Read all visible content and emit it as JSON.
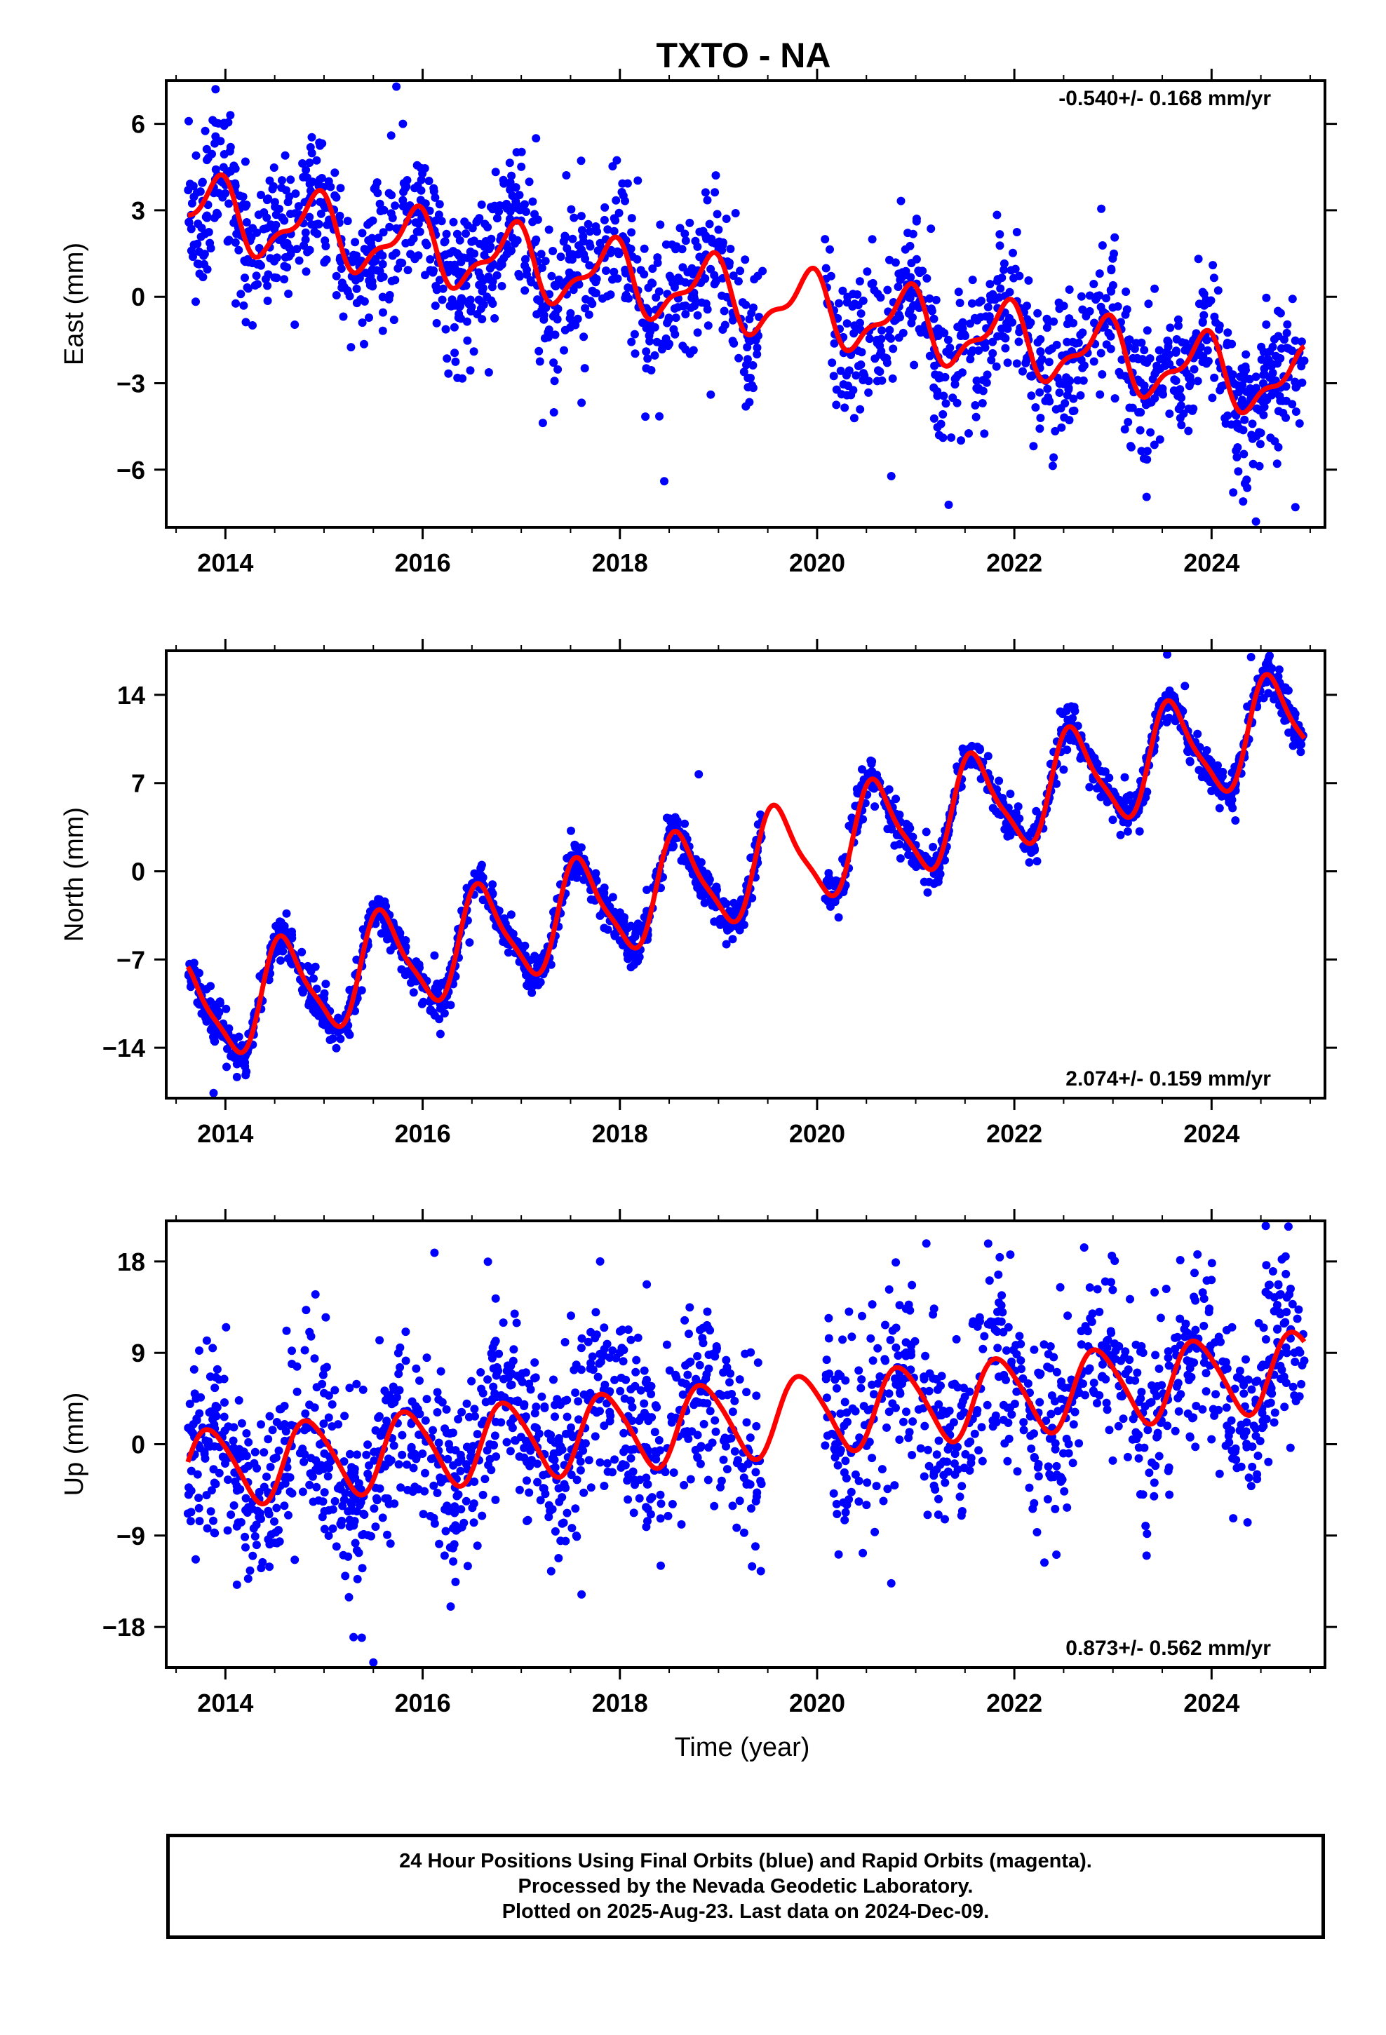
{
  "title": "TXTO - NA",
  "xlabel": "Time (year)",
  "colors": {
    "points": "#0000ff",
    "model": "#ff0000",
    "axes": "#000000"
  },
  "caption": {
    "line1": "24 Hour Positions Using Final Orbits (blue) and Rapid Orbits (magenta).",
    "line2": "Processed by the Nevada Geodetic Laboratory.",
    "line3": "Plotted on 2025-Aug-23. Last data on 2024-Dec-09."
  },
  "chart_data": [
    {
      "type": "scatter",
      "component": "east",
      "ylabel": "East (mm)",
      "rate_text": "-0.540+/- 0.168 mm/yr",
      "rate_position": "top-right",
      "xlim": [
        2013.4,
        2025.15
      ],
      "ylim": [
        -8,
        7.5
      ],
      "xticks": [
        2014,
        2016,
        2018,
        2020,
        2022,
        2024
      ],
      "yticks": [
        -6,
        -3,
        0,
        3,
        6
      ],
      "data_span": [
        2013.62,
        2024.94
      ],
      "data_gap": [
        2019.45,
        2020.08
      ],
      "model": {
        "offset": 3.0,
        "rate_mm_per_yr": -0.54,
        "ref_year": 2013.62,
        "annual_amp": 1.1,
        "annual_phase_year": 2014.9,
        "semiannual_amp": 0.45,
        "semiannual_phase_year": 2014.0
      },
      "scatter_sd": 1.2,
      "n_points": 1900,
      "extreme_points": [
        [
          2013.9,
          7.2
        ],
        [
          2014.05,
          6.3
        ],
        [
          2015.8,
          6.0
        ],
        [
          2017.15,
          5.5
        ],
        [
          2018.45,
          -6.4
        ],
        [
          2024.45,
          -7.8
        ],
        [
          2024.85,
          -7.3
        ]
      ]
    },
    {
      "type": "scatter",
      "component": "north",
      "ylabel": "North (mm)",
      "rate_text": "2.074+/- 0.159 mm/yr",
      "rate_position": "bottom-right",
      "xlim": [
        2013.4,
        2025.15
      ],
      "ylim": [
        -18,
        17.5
      ],
      "xticks": [
        2014,
        2016,
        2018,
        2020,
        2022,
        2024
      ],
      "yticks": [
        -14,
        -7,
        0,
        7,
        14
      ],
      "data_span": [
        2013.62,
        2024.94
      ],
      "data_gap": [
        2019.45,
        2020.08
      ],
      "model": {
        "offset": -11.5,
        "rate_mm_per_yr": 2.074,
        "ref_year": 2013.62,
        "annual_amp": 3.9,
        "annual_phase_year": 2014.6,
        "semiannual_amp": 0.9,
        "semiannual_phase_year": 2014.5
      },
      "scatter_sd": 0.8,
      "n_points": 1900,
      "extreme_points": [
        [
          2013.88,
          -17.6
        ],
        [
          2023.55,
          17.2
        ],
        [
          2024.4,
          17.0
        ],
        [
          2018.8,
          7.7
        ]
      ]
    },
    {
      "type": "scatter",
      "component": "up",
      "ylabel": "Up (mm)",
      "rate_text": "0.873+/- 0.562 mm/yr",
      "rate_position": "bottom-right",
      "xlim": [
        2013.4,
        2025.15
      ],
      "ylim": [
        -22,
        22
      ],
      "xticks": [
        2014,
        2016,
        2018,
        2020,
        2022,
        2024
      ],
      "yticks": [
        -18,
        -9,
        0,
        9,
        18
      ],
      "data_span": [
        2013.62,
        2024.94
      ],
      "data_gap": [
        2019.45,
        2020.08
      ],
      "model": {
        "offset": -2.5,
        "rate_mm_per_yr": 0.873,
        "ref_year": 2013.62,
        "annual_amp": 3.8,
        "annual_phase_year": 2014.85,
        "semiannual_amp": 0.5,
        "semiannual_phase_year": 2014.2
      },
      "scatter_sd": 4.5,
      "n_points": 1900,
      "extreme_points": [
        [
          2015.5,
          -21.5
        ],
        [
          2017.8,
          18.0
        ],
        [
          2024.55,
          21.5
        ],
        [
          2024.75,
          18.5
        ],
        [
          2015.3,
          -19.0
        ]
      ]
    }
  ]
}
